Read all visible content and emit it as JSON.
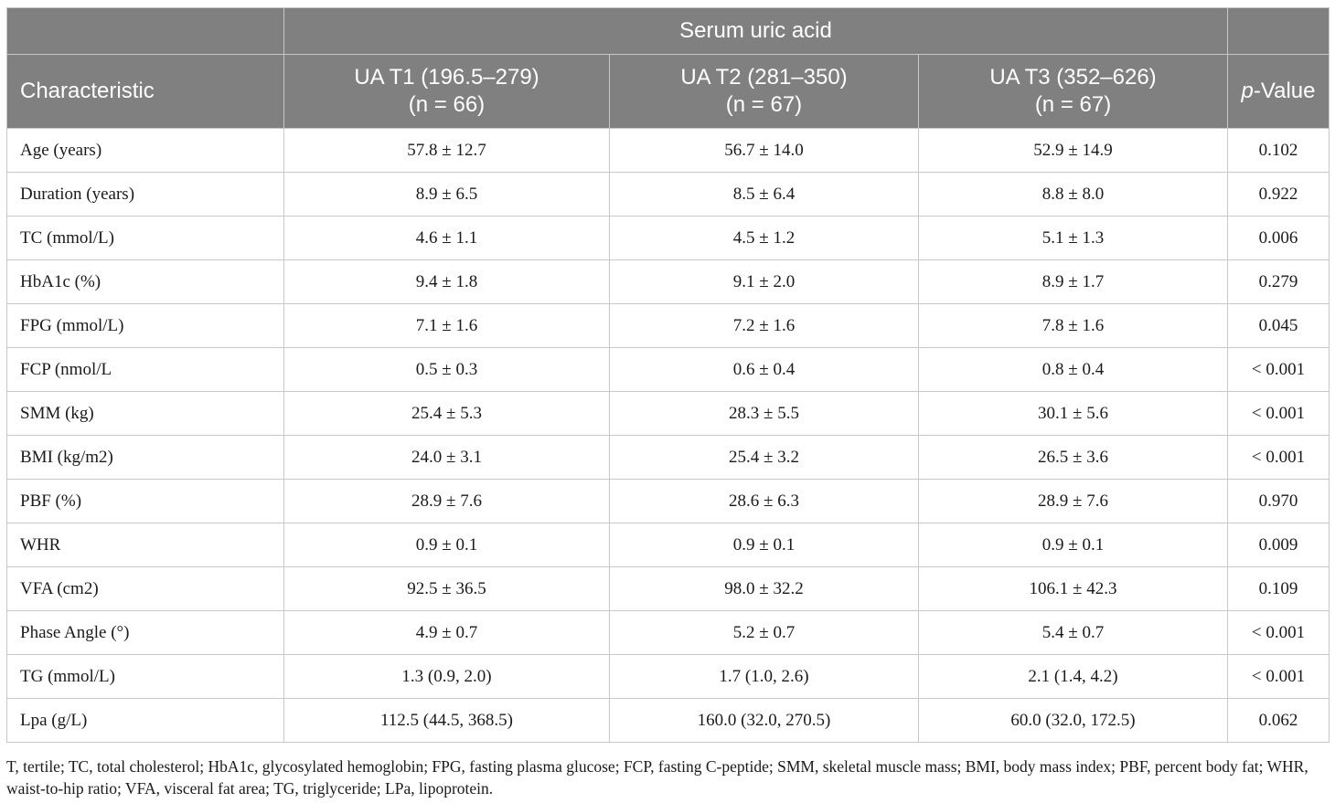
{
  "header": {
    "group_label": "Serum uric acid",
    "characteristic": "Characteristic",
    "t1": {
      "line1": "UA T1 (196.5–279)",
      "line2": "(n = 66)"
    },
    "t2": {
      "line1": "UA T2 (281–350)",
      "line2": "(n = 67)"
    },
    "t3": {
      "line1": "UA T3 (352–626)",
      "line2": "(n = 67)"
    },
    "pvalue": {
      "italic": "p",
      "rest": "-Value"
    }
  },
  "rows": [
    {
      "label": "Age (years)",
      "t1": "57.8 ± 12.7",
      "t2": "56.7 ± 14.0",
      "t3": "52.9 ± 14.9",
      "p": "0.102"
    },
    {
      "label": "Duration (years)",
      "t1": "8.9 ± 6.5",
      "t2": "8.5 ± 6.4",
      "t3": "8.8 ± 8.0",
      "p": "0.922"
    },
    {
      "label": "TC (mmol/L)",
      "t1": "4.6 ± 1.1",
      "t2": "4.5 ± 1.2",
      "t3": "5.1 ± 1.3",
      "p": "0.006"
    },
    {
      "label": "HbA1c (%)",
      "t1": "9.4 ± 1.8",
      "t2": "9.1 ± 2.0",
      "t3": "8.9 ± 1.7",
      "p": "0.279"
    },
    {
      "label": "FPG (mmol/L)",
      "t1": "7.1 ± 1.6",
      "t2": "7.2 ± 1.6",
      "t3": "7.8 ± 1.6",
      "p": "0.045"
    },
    {
      "label": "FCP (nmol/L",
      "t1": "0.5 ± 0.3",
      "t2": "0.6 ± 0.4",
      "t3": "0.8 ± 0.4",
      "p": "< 0.001"
    },
    {
      "label": "SMM (kg)",
      "t1": "25.4 ± 5.3",
      "t2": "28.3 ± 5.5",
      "t3": "30.1 ± 5.6",
      "p": "< 0.001"
    },
    {
      "label": "BMI (kg/m2)",
      "t1": "24.0 ± 3.1",
      "t2": "25.4 ± 3.2",
      "t3": "26.5 ± 3.6",
      "p": "< 0.001"
    },
    {
      "label": "PBF (%)",
      "t1": "28.9 ± 7.6",
      "t2": "28.6 ± 6.3",
      "t3": "28.9 ± 7.6",
      "p": "0.970"
    },
    {
      "label": "WHR",
      "t1": "0.9 ± 0.1",
      "t2": "0.9 ± 0.1",
      "t3": "0.9 ± 0.1",
      "p": "0.009"
    },
    {
      "label": "VFA (cm2)",
      "t1": "92.5 ± 36.5",
      "t2": "98.0 ± 32.2",
      "t3": "106.1 ± 42.3",
      "p": "0.109"
    },
    {
      "label": "Phase Angle (°)",
      "t1": "4.9 ± 0.7",
      "t2": "5.2 ± 0.7",
      "t3": "5.4 ± 0.7",
      "p": "< 0.001"
    },
    {
      "label": "TG (mmol/L)",
      "t1": "1.3 (0.9, 2.0)",
      "t2": "1.7 (1.0, 2.6)",
      "t3": "2.1 (1.4, 4.2)",
      "p": "< 0.001"
    },
    {
      "label": "Lpa (g/L)",
      "t1": "112.5 (44.5, 368.5)",
      "t2": "160.0 (32.0, 270.5)",
      "t3": "60.0 (32.0, 172.5)",
      "p": "0.062"
    }
  ],
  "footnote": "T, tertile; TC, total cholesterol; HbA1c, glycosylated hemoglobin; FPG, fasting plasma glucose; FCP, fasting C-peptide; SMM, skeletal muscle mass; BMI, body mass index; PBF, percent body fat; WHR, waist-to-hip ratio; VFA, visceral fat area; TG, triglyceride; LPa, lipoprotein.",
  "colors": {
    "header_bg": "#808080",
    "header_text": "#ffffff",
    "grid": "#c8c8c8"
  }
}
